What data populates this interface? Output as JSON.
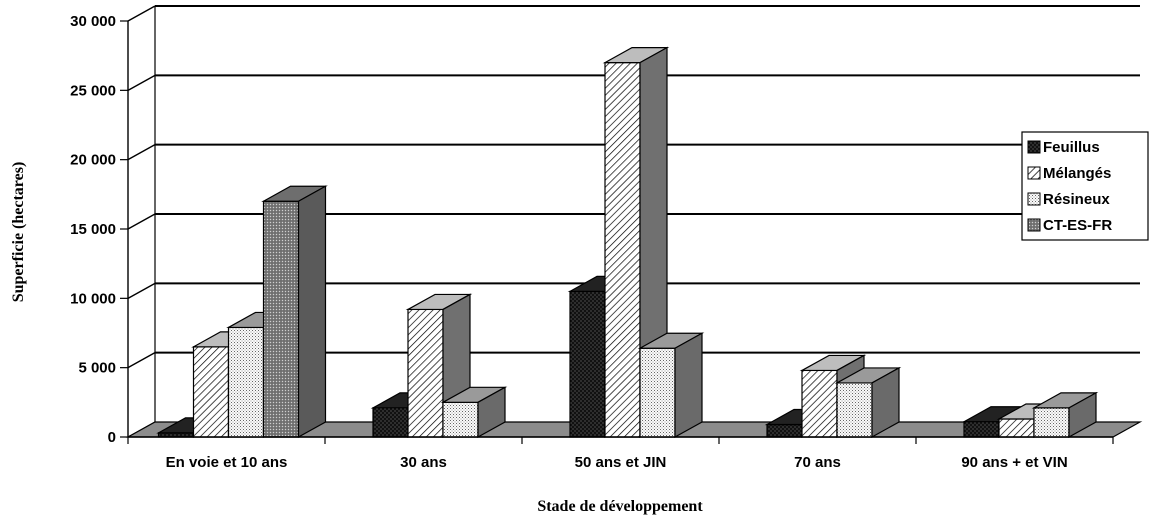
{
  "chart_data": {
    "type": "bar",
    "subtype": "3d-clustered-column",
    "ylabel": "Superficie (hectares)",
    "xlabel": "Stade de développement",
    "ylim": [
      0,
      30000
    ],
    "yticks": [
      0,
      5000,
      10000,
      15000,
      20000,
      25000,
      30000
    ],
    "ytick_labels": [
      "0",
      "5 000",
      "10 000",
      "15 000",
      "20 000",
      "25 000",
      "30 000"
    ],
    "grid": true,
    "legend_position": "right",
    "categories": [
      "En voie et 10 ans",
      "30 ans",
      "50 ans et JIN",
      "70 ans",
      "90 ans + et VIN"
    ],
    "series": [
      {
        "name": "Feuillus",
        "values": [
          300,
          2100,
          10500,
          900,
          1100
        ]
      },
      {
        "name": "Mélangés",
        "values": [
          6500,
          9200,
          27000,
          4800,
          1300
        ]
      },
      {
        "name": "Résineux",
        "values": [
          7900,
          2500,
          6400,
          3900,
          2100
        ]
      },
      {
        "name": "CT-ES-FR",
        "values": [
          17000,
          0,
          0,
          0,
          0
        ]
      }
    ]
  },
  "colors": {
    "Feuillus": "#111111",
    "Mélangés": "#ffffff",
    "Résineux": "#e6e6e6",
    "CT-ES-FR": "#8a8a8a",
    "floor": "#8c8c8c"
  }
}
